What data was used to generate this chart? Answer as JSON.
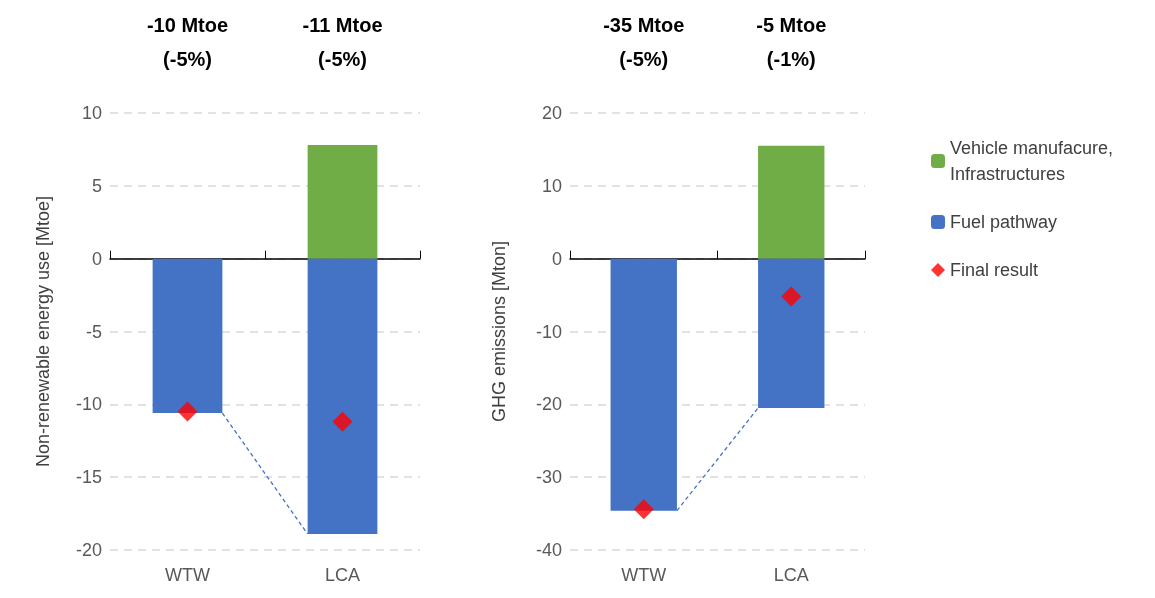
{
  "chart_data": [
    {
      "type": "bar",
      "stacked": true,
      "ylabel": "Non-renewable energy use [Mtoe]",
      "categories": [
        "WTW",
        "LCA"
      ],
      "ylim": [
        -20,
        10
      ],
      "yticks": [
        -20,
        -15,
        -10,
        -5,
        0,
        5,
        10
      ],
      "grid": "y",
      "legend": false,
      "annotations": [
        "-10 Mtoe\n(-5%)",
        "-11 Mtoe\n(-5%)"
      ],
      "series": [
        {
          "color": "#70ad47",
          "values": [
            null,
            7.8
          ]
        },
        {
          "color": "#4472c4",
          "values": [
            -10.6,
            -18.9
          ]
        },
        {
          "type": "scatter",
          "marker": "diamond",
          "color": "#ff0000",
          "x": [
            "WTW",
            "LCA"
          ],
          "values": [
            -10.5,
            -11.2
          ]
        }
      ]
    },
    {
      "type": "bar",
      "stacked": true,
      "ylabel": "GHG emissions [Mton]",
      "categories": [
        "WTW",
        "LCA"
      ],
      "ylim": [
        -40,
        20
      ],
      "yticks": [
        -40,
        -30,
        -20,
        -10,
        0,
        10,
        20
      ],
      "grid": "y",
      "legend": "right",
      "annotations": [
        "-35 Mtoe\n(-5%)",
        "-5 Mtoe\n(-1%)"
      ],
      "series": [
        {
          "name": "Vehicle manufacure, Infrastructures",
          "color": "#70ad47",
          "values": [
            null,
            15.5
          ]
        },
        {
          "name": "Fuel pathway",
          "color": "#4472c4",
          "values": [
            -34.6,
            -20.5
          ]
        },
        {
          "name": "Final result",
          "type": "scatter",
          "marker": "diamond",
          "color": "#ff0000",
          "x": [
            "WTW",
            "LCA"
          ],
          "values": [
            -34.4,
            -5.2
          ]
        }
      ]
    }
  ]
}
